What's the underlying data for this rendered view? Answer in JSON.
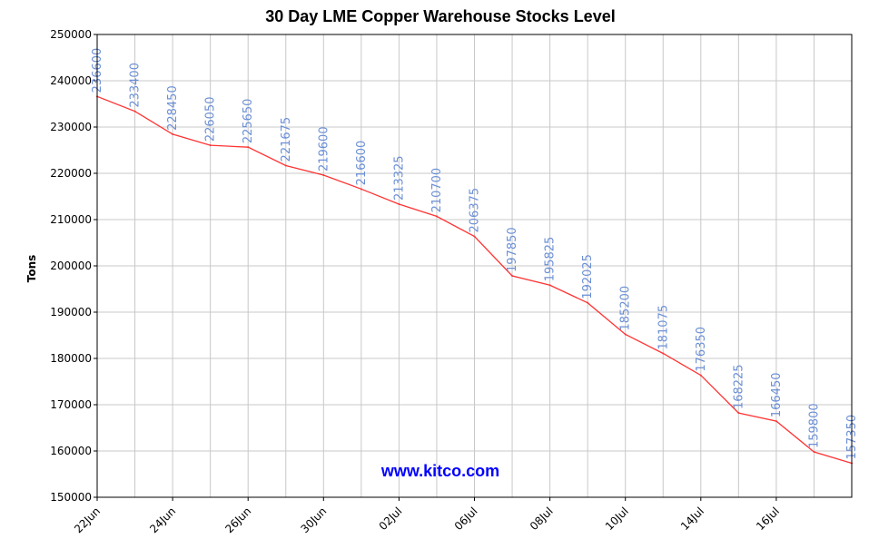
{
  "chart_data": {
    "type": "line",
    "title": "30 Day LME Copper Warehouse Stocks Level",
    "ylabel": "Tons",
    "xlabel": "",
    "ylim": [
      150000,
      250000
    ],
    "yticks": [
      "150000",
      "160000",
      "170000",
      "180000",
      "190000",
      "200000",
      "210000",
      "220000",
      "230000",
      "240000",
      "250000"
    ],
    "xtick_labels": [
      "22Jun",
      "24Jun",
      "26Jun",
      "30Jun",
      "02Jul",
      "06Jul",
      "08Jul",
      "10Jul",
      "14Jul",
      "16Jul"
    ],
    "grid": true,
    "series": [
      {
        "color": "#ff3333",
        "values": [
          236600,
          233400,
          228450,
          226050,
          225650,
          221675,
          219600,
          216600,
          213325,
          210700,
          206375,
          197850,
          195825,
          192025,
          185200,
          181075,
          176350,
          168225,
          166450,
          159800,
          157350
        ]
      }
    ],
    "data_labels": [
      "236600",
      "233400",
      "228450",
      "226050",
      "225650",
      "221675",
      "219600",
      "216600",
      "213325",
      "210700",
      "206375",
      "197850",
      "195825",
      "192025",
      "185200",
      "181075",
      "176350",
      "168225",
      "166450",
      "159800",
      "157350"
    ],
    "label_color": "#6b8fd6",
    "watermark": "www.kitco.com",
    "watermark_color": "#0000ff"
  }
}
